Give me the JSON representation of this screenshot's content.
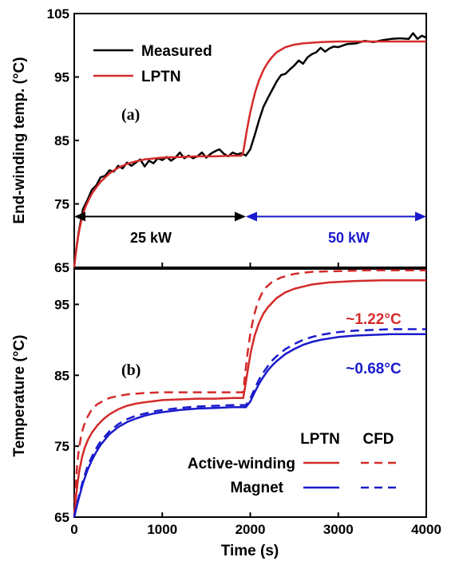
{
  "chart_data": [
    {
      "panel": "(a)",
      "type": "line",
      "xlabel": "",
      "ylabel": "End-winding temp. (°C)",
      "xlim": [
        0,
        4000
      ],
      "ylim": [
        65,
        105
      ],
      "xticks": [
        0,
        1000,
        2000,
        3000,
        4000
      ],
      "xtick_labels": [
        "",
        "",
        "",
        "",
        ""
      ],
      "yticks": [
        65,
        75,
        85,
        95,
        105
      ],
      "ytick_labels": [
        "65",
        "75",
        "85",
        "95",
        "105"
      ],
      "grid": false,
      "legend_position": "top-left",
      "series": [
        {
          "name": "Measured",
          "color": "#000000",
          "style": "solid",
          "x": [
            0,
            50,
            100,
            150,
            200,
            250,
            300,
            350,
            400,
            450,
            500,
            550,
            600,
            650,
            700,
            750,
            800,
            850,
            900,
            950,
            1000,
            1050,
            1100,
            1150,
            1200,
            1250,
            1300,
            1350,
            1400,
            1450,
            1500,
            1550,
            1600,
            1650,
            1700,
            1750,
            1800,
            1850,
            1900,
            1950,
            2000,
            2050,
            2100,
            2150,
            2200,
            2250,
            2300,
            2350,
            2400,
            2450,
            2500,
            2550,
            2600,
            2650,
            2700,
            2750,
            2800,
            2850,
            2900,
            2950,
            3000,
            3100,
            3200,
            3300,
            3400,
            3500,
            3600,
            3700,
            3800,
            3850,
            3900,
            3950,
            4000
          ],
          "y": [
            65.5,
            70.5,
            74.2,
            75.6,
            77.2,
            77.9,
            79.2,
            79.4,
            80.3,
            80.1,
            81.0,
            80.6,
            81.5,
            81.0,
            81.5,
            82.0,
            80.9,
            81.8,
            81.4,
            82.2,
            81.9,
            82.4,
            81.8,
            82.3,
            83.1,
            82.2,
            82.6,
            82.2,
            82.5,
            83.1,
            82.3,
            82.9,
            83.3,
            83.6,
            82.9,
            82.5,
            83.1,
            82.8,
            83.0,
            82.6,
            83.6,
            85.8,
            88.2,
            90.3,
            91.7,
            93.0,
            94.3,
            95.3,
            95.5,
            96.2,
            96.8,
            97.6,
            97.1,
            98.1,
            98.6,
            98.9,
            99.6,
            99.0,
            99.5,
            99.8,
            99.7,
            100.2,
            100.3,
            100.7,
            100.5,
            100.8,
            101.0,
            101.1,
            101.0,
            101.9,
            101.0,
            101.5,
            101.2
          ]
        },
        {
          "name": "LPTN",
          "color": "#d42a2a",
          "style": "solid",
          "x": [
            0,
            20,
            40,
            60,
            80,
            100,
            130,
            160,
            200,
            250,
            300,
            400,
            500,
            600,
            700,
            800,
            1000,
            1200,
            1400,
            1600,
            1800,
            1900,
            1920,
            1940,
            1960,
            1980,
            2000,
            2030,
            2060,
            2100,
            2150,
            2200,
            2250,
            2300,
            2400,
            2500,
            2600,
            2800,
            3000,
            3200,
            3500,
            3800,
            4000
          ],
          "y": [
            65.0,
            67.5,
            69.5,
            71.0,
            72.3,
            73.4,
            74.6,
            75.5,
            76.6,
            77.6,
            78.5,
            79.8,
            80.7,
            81.3,
            81.7,
            82.0,
            82.3,
            82.4,
            82.5,
            82.5,
            82.6,
            82.6,
            83.2,
            84.8,
            86.5,
            88.0,
            89.4,
            91.2,
            92.8,
            94.5,
            96.1,
            97.3,
            98.2,
            98.9,
            99.7,
            100.1,
            100.3,
            100.5,
            100.6,
            100.6,
            100.6,
            100.6,
            100.6
          ]
        }
      ],
      "annotations": [
        {
          "text": "(a)",
          "x": 620,
          "y": 89.3
        },
        {
          "text": "25 kW",
          "from_x": 0,
          "to_x": 1950,
          "y": 73,
          "color": "#000000"
        },
        {
          "text": "50 kW",
          "from_x": 1950,
          "to_x": 4000,
          "y": 73,
          "color": "#1a1acc"
        }
      ]
    },
    {
      "panel": "(b)",
      "type": "line",
      "xlabel": "Time (s)",
      "ylabel": "Temperature (°C)",
      "xlim": [
        0,
        4000
      ],
      "ylim": [
        65,
        100
      ],
      "xticks": [
        0,
        1000,
        2000,
        3000,
        4000
      ],
      "xtick_labels": [
        "0",
        "1000",
        "2000",
        "3000",
        "4000"
      ],
      "yticks": [
        65,
        75,
        85,
        95
      ],
      "ytick_labels": [
        "65",
        "75",
        "85",
        "95"
      ],
      "grid": false,
      "legend_position": "bottom-right",
      "legend_header": {
        "lptn": "LPTN",
        "cfd": "CFD"
      },
      "legend_rows": [
        {
          "label": "Active-winding",
          "color": "#d42a2a"
        },
        {
          "label": "Magnet",
          "color": "#1a1acc"
        }
      ],
      "series": [
        {
          "name": "Active-winding LPTN",
          "color": "#d42a2a",
          "style": "solid",
          "x": [
            0,
            20,
            40,
            60,
            90,
            120,
            160,
            200,
            260,
            330,
            400,
            500,
            600,
            700,
            800,
            1000,
            1200,
            1400,
            1600,
            1800,
            1920,
            1950,
            1980,
            2010,
            2050,
            2100,
            2150,
            2200,
            2300,
            2400,
            2500,
            2700,
            2900,
            3200,
            3500,
            3800,
            4000
          ],
          "y": [
            65.0,
            67.8,
            70.0,
            71.7,
            73.5,
            74.8,
            76.0,
            76.9,
            77.9,
            78.8,
            79.5,
            80.2,
            80.7,
            81.0,
            81.2,
            81.5,
            81.6,
            81.7,
            81.7,
            81.8,
            81.8,
            84.0,
            86.4,
            88.5,
            90.6,
            92.4,
            93.7,
            94.6,
            95.9,
            96.7,
            97.2,
            97.8,
            98.1,
            98.3,
            98.4,
            98.4,
            98.4
          ]
        },
        {
          "name": "Active-winding CFD",
          "color": "#d42a2a",
          "style": "dashed",
          "x": [
            0,
            15,
            30,
            50,
            80,
            110,
            150,
            200,
            260,
            330,
            400,
            500,
            600,
            700,
            800,
            1000,
            1200,
            1400,
            1600,
            1800,
            1920,
            1945,
            1970,
            2000,
            2040,
            2080,
            2130,
            2180,
            2250,
            2350,
            2500,
            2700,
            3000,
            3300,
            3600,
            4000
          ],
          "y": [
            65.0,
            69.0,
            71.8,
            74.3,
            76.6,
            77.9,
            79.1,
            80.2,
            80.9,
            81.4,
            81.8,
            82.1,
            82.3,
            82.4,
            82.5,
            82.6,
            82.6,
            82.6,
            82.6,
            82.6,
            82.6,
            85.5,
            88.2,
            90.8,
            93.3,
            95.1,
            96.5,
            97.4,
            98.2,
            98.8,
            99.3,
            99.6,
            99.7,
            99.8,
            99.8,
            99.8
          ]
        },
        {
          "name": "Magnet LPTN",
          "color": "#1a1acc",
          "style": "solid",
          "x": [
            0,
            30,
            60,
            100,
            150,
            200,
            250,
            300,
            400,
            500,
            600,
            700,
            800,
            900,
            1000,
            1200,
            1400,
            1600,
            1800,
            1950,
            2000,
            2050,
            2100,
            2150,
            2200,
            2250,
            2300,
            2400,
            2500,
            2600,
            2700,
            2800,
            3000,
            3200,
            3400,
            3600,
            3800,
            4000
          ],
          "y": [
            65.0,
            66.6,
            68.0,
            69.8,
            71.6,
            73.0,
            74.2,
            75.2,
            76.7,
            77.7,
            78.4,
            78.9,
            79.3,
            79.6,
            79.8,
            80.1,
            80.3,
            80.4,
            80.5,
            80.5,
            81.3,
            82.6,
            83.8,
            84.8,
            85.7,
            86.4,
            87.0,
            88.0,
            88.7,
            89.3,
            89.7,
            90.0,
            90.4,
            90.6,
            90.7,
            90.8,
            90.8,
            90.8
          ]
        },
        {
          "name": "Magnet CFD",
          "color": "#1a1acc",
          "style": "dashed",
          "x": [
            0,
            30,
            60,
            100,
            150,
            200,
            250,
            300,
            400,
            500,
            600,
            700,
            800,
            900,
            1000,
            1200,
            1400,
            1600,
            1800,
            1950,
            2000,
            2050,
            2100,
            2150,
            2200,
            2250,
            2300,
            2400,
            2500,
            2600,
            2700,
            2800,
            3000,
            3200,
            3400,
            3600,
            3800,
            4000
          ],
          "y": [
            65.0,
            66.8,
            68.3,
            70.2,
            72.1,
            73.5,
            74.7,
            75.7,
            77.1,
            78.1,
            78.8,
            79.3,
            79.6,
            79.9,
            80.1,
            80.4,
            80.6,
            80.7,
            80.8,
            80.8,
            81.7,
            83.1,
            84.4,
            85.4,
            86.3,
            87.1,
            87.7,
            88.7,
            89.4,
            90.0,
            90.4,
            90.7,
            91.1,
            91.3,
            91.4,
            91.5,
            91.5,
            91.5
          ]
        }
      ],
      "annotations": [
        {
          "text": "(b)",
          "x": 620,
          "y": 86.3
        },
        {
          "text": "~1.22°C",
          "x": 3500,
          "y": 96.4,
          "color": "#d42a2a"
        },
        {
          "text": "~0.68°C",
          "x": 3500,
          "y": 88.5,
          "color": "#1a1acc"
        }
      ]
    }
  ]
}
